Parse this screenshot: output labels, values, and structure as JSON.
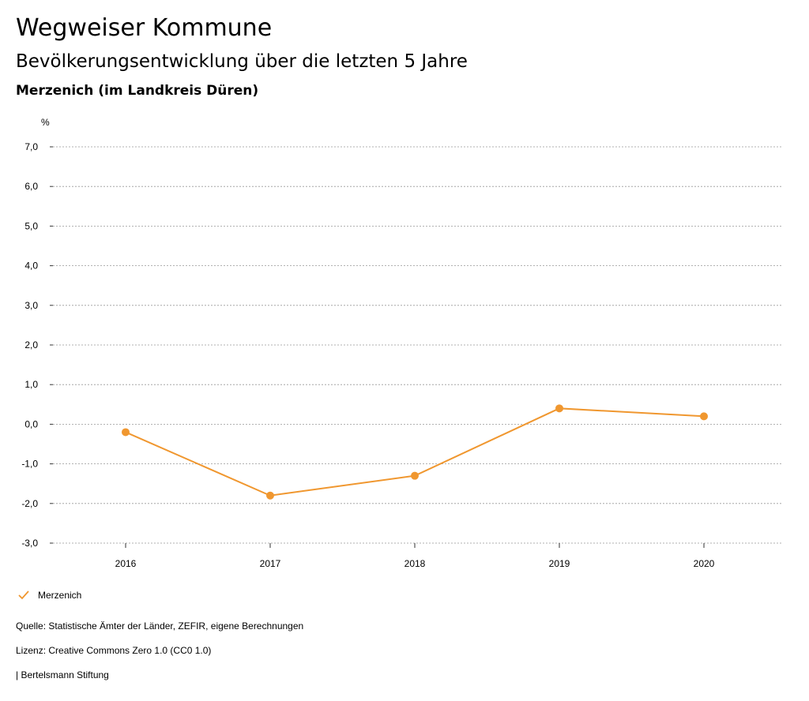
{
  "header": {
    "title": "Wegweiser Kommune",
    "subtitle": "Bevölkerungsentwicklung über die letzten 5 Jahre",
    "region": "Merzenich (im Landkreis Düren)"
  },
  "colors": {
    "series": "#f0972f",
    "grid": "#999999",
    "text": "#000000"
  },
  "chart_data": {
    "type": "line",
    "title": "Bevölkerungsentwicklung über die letzten 5 Jahre",
    "ylabel": "%",
    "xlabel": "",
    "ylim": [
      -3.0,
      7.0
    ],
    "yticks": [
      7.0,
      6.0,
      5.0,
      4.0,
      3.0,
      2.0,
      1.0,
      0.0,
      -1.0,
      -2.0,
      -3.0
    ],
    "ytick_labels": [
      "7,0",
      "6,0",
      "5,0",
      "4,0",
      "3,0",
      "2,0",
      "1,0",
      "0,0",
      "-1,0",
      "-2,0",
      "-3,0"
    ],
    "x": [
      "2016",
      "2017",
      "2018",
      "2019",
      "2020"
    ],
    "grid": true,
    "legend_position": "bottom-left",
    "series": [
      {
        "name": "Merzenich",
        "values": [
          -0.2,
          -1.8,
          -1.3,
          0.4,
          0.2
        ]
      }
    ]
  },
  "legend": {
    "label": "Merzenich",
    "icon": "check-icon"
  },
  "footer": {
    "source": "Quelle: Statistische Ämter der Länder, ZEFIR, eigene Berechnungen",
    "license": "Lizenz: Creative Commons Zero 1.0 (CC0 1.0)",
    "publisher": "| Bertelsmann Stiftung"
  }
}
